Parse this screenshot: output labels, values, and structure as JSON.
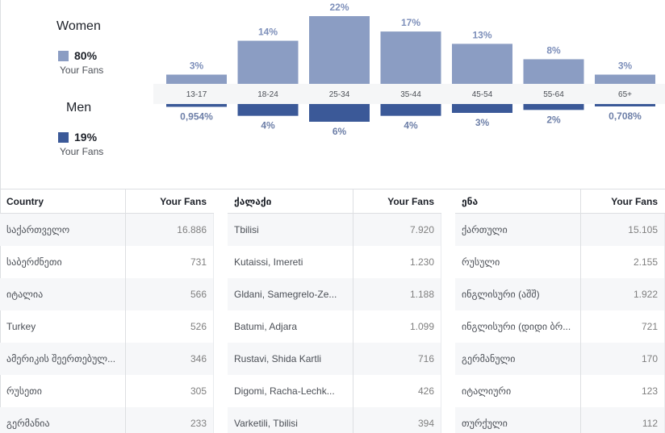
{
  "legend": {
    "women": {
      "title": "Women",
      "pct": "80%",
      "sub": "Your Fans"
    },
    "men": {
      "title": "Men",
      "pct": "19%",
      "sub": "Your Fans"
    },
    "women_color": "#8b9dc3",
    "men_color": "#3b5998"
  },
  "chart_data": {
    "type": "bar",
    "categories": [
      "13-17",
      "18-24",
      "25-34",
      "35-44",
      "45-54",
      "55-64",
      "65+"
    ],
    "series": [
      {
        "values": [
          3,
          14,
          22,
          17,
          13,
          8,
          3
        ],
        "labels": [
          "3%",
          "14%",
          "22%",
          "17%",
          "13%",
          "8%",
          "3%"
        ],
        "color": "#8b9dc3",
        "direction": "up"
      },
      {
        "values": [
          0.954,
          4,
          6,
          4,
          3,
          2,
          0.708
        ],
        "labels": [
          "0,954%",
          "4%",
          "6%",
          "4%",
          "3%",
          "2%",
          "0,708%"
        ],
        "color": "#3b5998",
        "direction": "down"
      }
    ],
    "ylim": [
      0,
      22
    ],
    "grid": false
  },
  "tables": [
    {
      "header": {
        "name": "Country",
        "value": "Your Fans"
      },
      "rows": [
        {
          "name": "საქართველო",
          "value": "16.886"
        },
        {
          "name": "საბერძნეთი",
          "value": "731"
        },
        {
          "name": "იტალია",
          "value": "566"
        },
        {
          "name": "Turkey",
          "value": "526"
        },
        {
          "name": "ამერიკის შეერთებულ...",
          "value": "346"
        },
        {
          "name": "რუსეთი",
          "value": "305"
        },
        {
          "name": "გერმანია",
          "value": "233"
        }
      ]
    },
    {
      "header": {
        "name": "ქალაქი",
        "value": "Your Fans"
      },
      "rows": [
        {
          "name": "Tbilisi",
          "value": "7.920"
        },
        {
          "name": "Kutaissi, Imereti",
          "value": "1.230"
        },
        {
          "name": "Gldani, Samegrelo-Ze...",
          "value": "1.188"
        },
        {
          "name": "Batumi, Adjara",
          "value": "1.099"
        },
        {
          "name": "Rustavi, Shida Kartli",
          "value": "716"
        },
        {
          "name": "Digomi, Racha-Lechk...",
          "value": "426"
        },
        {
          "name": "Varketili, Tbilisi",
          "value": "394"
        }
      ]
    },
    {
      "header": {
        "name": "ენა",
        "value": "Your Fans"
      },
      "rows": [
        {
          "name": "ქართული",
          "value": "15.105"
        },
        {
          "name": "რუსული",
          "value": "2.155"
        },
        {
          "name": "ინგლისური (აშშ)",
          "value": "1.922"
        },
        {
          "name": "ინგლისური (დიდი ბრ...",
          "value": "721"
        },
        {
          "name": "გერმანული",
          "value": "170"
        },
        {
          "name": "იტალიური",
          "value": "123"
        },
        {
          "name": "თურქული",
          "value": "112"
        }
      ]
    }
  ]
}
